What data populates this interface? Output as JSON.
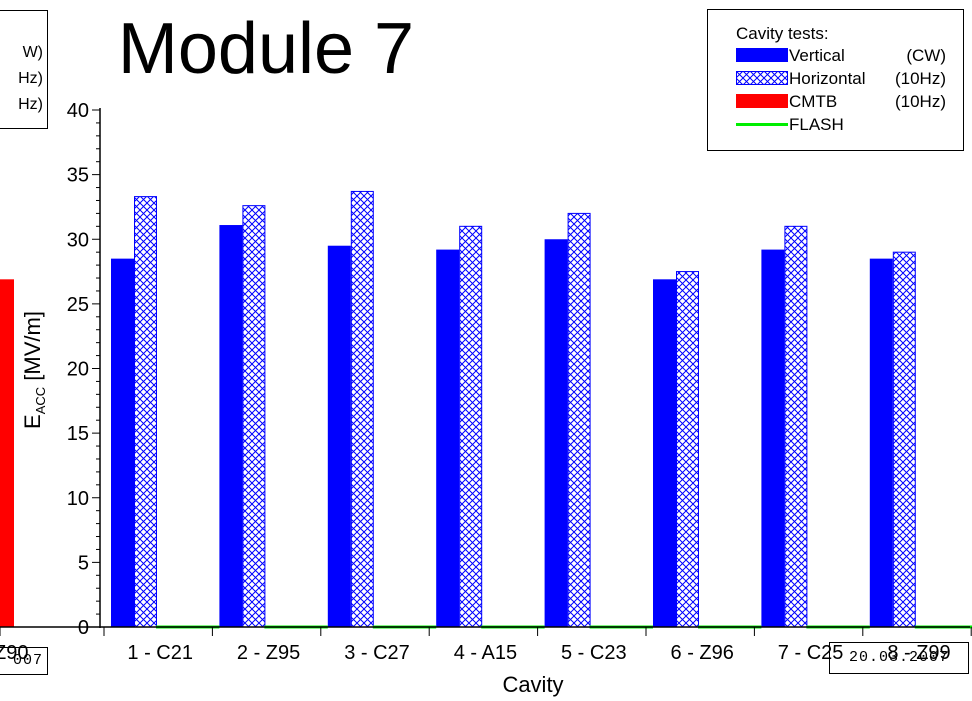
{
  "title": "Module 7",
  "left_panel": {
    "legend_fragments": [
      "W)",
      "Hz)",
      "Hz)"
    ],
    "cavity_fragment": "Z90",
    "date_fragment": "007"
  },
  "date": "20.03.2007",
  "legend": {
    "title": "Cavity tests:",
    "items": [
      {
        "label": "Vertical",
        "unit": "(CW)"
      },
      {
        "label": "Horizontal",
        "unit": "(10Hz)"
      },
      {
        "label": "CMTB",
        "unit": "(10Hz)"
      },
      {
        "label": "FLASH",
        "unit": ""
      }
    ]
  },
  "colors": {
    "vertical": "#0000ff",
    "horizontal": "#0000ff",
    "cmtb": "#ff0000",
    "flash": "#00ee00"
  },
  "chart_data": {
    "type": "bar",
    "title": "Module 7",
    "xlabel": "Cavity",
    "ylabel_main": "E",
    "ylabel_sub": "ACC",
    "ylabel_unit": " [MV/m]",
    "categories": [
      "1 - C21",
      "2 - Z95",
      "3 - C27",
      "4 - A15",
      "5 - C23",
      "6 - Z96",
      "7 - C25",
      "8 - Z99"
    ],
    "ylim": [
      0,
      40
    ],
    "yticks": [
      0,
      5,
      10,
      15,
      20,
      25,
      30,
      35,
      40
    ],
    "series": [
      {
        "name": "Vertical (CW)",
        "values": [
          28.5,
          31.1,
          29.5,
          29.2,
          30.0,
          26.9,
          29.2,
          28.5
        ]
      },
      {
        "name": "Horizontal (10Hz)",
        "values": [
          33.3,
          32.6,
          33.7,
          31.0,
          32.0,
          27.5,
          31.0,
          29.0
        ]
      },
      {
        "name": "FLASH",
        "values": [
          0,
          0,
          0,
          0,
          0,
          0,
          0,
          0
        ]
      }
    ],
    "left_partial_bar": {
      "series": "CMTB (10Hz)",
      "value": 26.9
    }
  }
}
